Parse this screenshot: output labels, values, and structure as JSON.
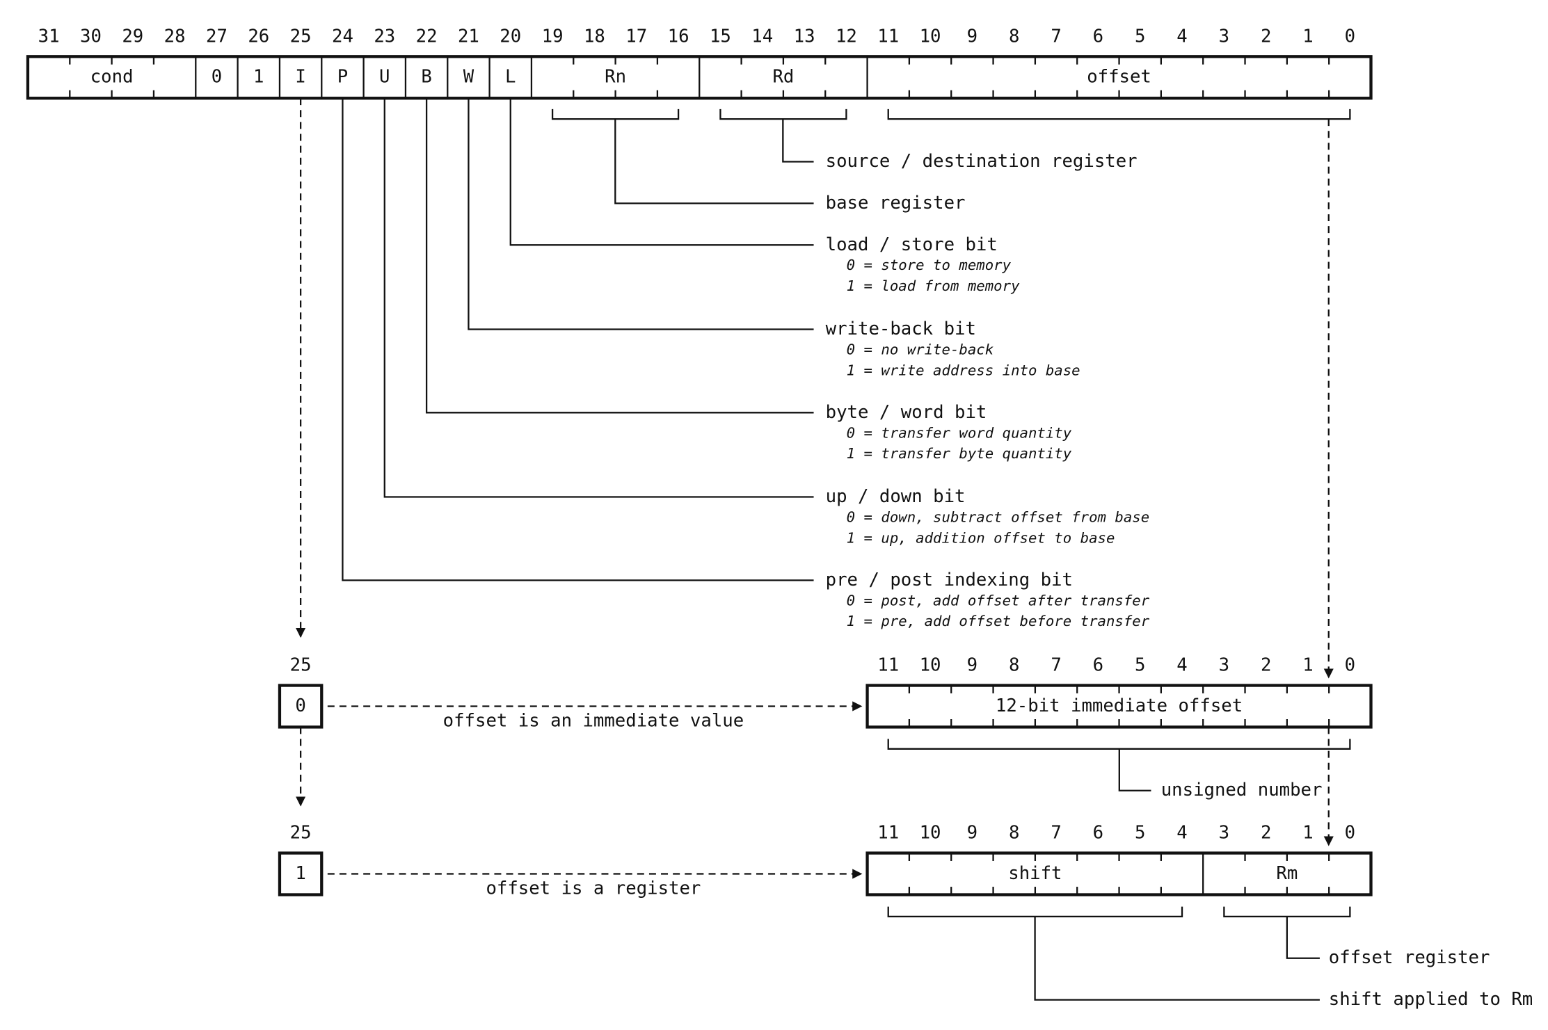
{
  "bit_numbers": [
    31,
    30,
    29,
    28,
    27,
    26,
    25,
    24,
    23,
    22,
    21,
    20,
    19,
    18,
    17,
    16,
    15,
    14,
    13,
    12,
    11,
    10,
    9,
    8,
    7,
    6,
    5,
    4,
    3,
    2,
    1,
    0
  ],
  "instruction_fields": [
    "cond",
    "0",
    "1",
    "I",
    "P",
    "U",
    "B",
    "W",
    "L",
    "Rn",
    "Rd",
    "offset"
  ],
  "annotations": [
    {
      "title": "source / destination register"
    },
    {
      "title": "base register"
    },
    {
      "title": "load / store bit",
      "notes": [
        "0 = store to memory",
        "1 = load from memory"
      ]
    },
    {
      "title": "write-back bit",
      "notes": [
        "0 = no write-back",
        "1 = write address into base"
      ]
    },
    {
      "title": "byte / word bit",
      "notes": [
        "0 = transfer word quantity",
        "1 = transfer byte quantity"
      ]
    },
    {
      "title": "up / down bit",
      "notes": [
        "0 = down, subtract offset from base",
        "1 = up, addition offset to base"
      ]
    },
    {
      "title": "pre / post indexing bit",
      "notes": [
        "0 = post, add offset after transfer",
        "1 = pre, add offset before transfer"
      ]
    }
  ],
  "immediate_case": {
    "bit_label": "25",
    "bit_value": "0",
    "description": "offset is an immediate value",
    "bit_numbers": [
      11,
      10,
      9,
      8,
      7,
      6,
      5,
      4,
      3,
      2,
      1,
      0
    ],
    "fields": [
      "12-bit immediate offset"
    ],
    "annotations": [
      "unsigned number"
    ]
  },
  "register_case": {
    "bit_label": "25",
    "bit_value": "1",
    "description": "offset is a register",
    "bit_numbers": [
      11,
      10,
      9,
      8,
      7,
      6,
      5,
      4,
      3,
      2,
      1,
      0
    ],
    "fields": [
      "shift",
      "Rm"
    ],
    "annotations": [
      "offset register",
      "shift applied to Rm"
    ]
  }
}
